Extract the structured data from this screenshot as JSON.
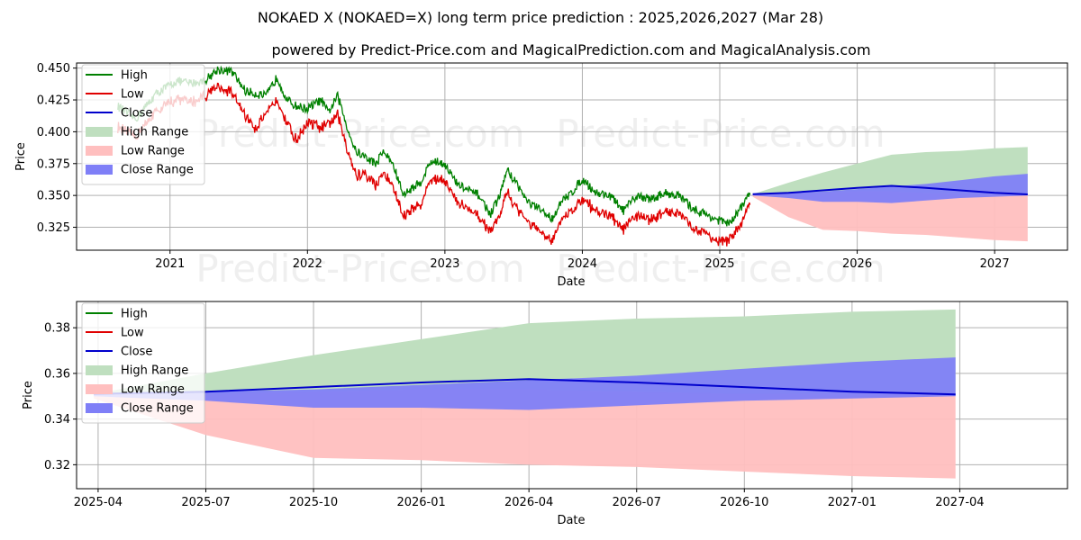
{
  "title": "NOKAED X (NOKAED=X) long term price prediction : 2025,2026,2027 (Mar 28)",
  "subtitle": "powered by Predict-Price.com and MagicalPrediction.com and MagicalAnalysis.com",
  "watermark_text": "Predict-Price.com",
  "colors": {
    "high": "#008000",
    "low": "#e00000",
    "close": "#0000cc",
    "high_range": "#bfdfbf",
    "low_range": "#ffbfbf",
    "close_range": "#7f7ff7"
  },
  "chart_data": [
    {
      "type": "line",
      "panel": "history",
      "xlabel": "Date",
      "ylabel": "Price",
      "xlim": [
        2020.32,
        2027.53
      ],
      "ylim": [
        0.307,
        0.454
      ],
      "grid": true,
      "legend_position": "top-left",
      "x_ticks": [
        {
          "label": "2021",
          "value": 2021.0
        },
        {
          "label": "2022",
          "value": 2022.0
        },
        {
          "label": "2023",
          "value": 2023.0
        },
        {
          "label": "2024",
          "value": 2024.0
        },
        {
          "label": "2025",
          "value": 2025.0
        },
        {
          "label": "2026",
          "value": 2026.0
        },
        {
          "label": "2027",
          "value": 2027.0
        }
      ],
      "y_ticks": [
        {
          "label": "0.325",
          "value": 0.325
        },
        {
          "label": "0.350",
          "value": 0.35
        },
        {
          "label": "0.375",
          "value": 0.375
        },
        {
          "label": "0.400",
          "value": 0.4
        },
        {
          "label": "0.425",
          "value": 0.425
        },
        {
          "label": "0.450",
          "value": 0.45
        }
      ],
      "legend": [
        "High",
        "Low",
        "Close",
        "High Range",
        "Low Range",
        "Close Range"
      ],
      "history_x": [
        2020.62,
        2020.75,
        2020.9,
        2021.05,
        2021.15,
        2021.25,
        2021.35,
        2021.45,
        2021.55,
        2021.62,
        2021.7,
        2021.78,
        2021.85,
        2021.92,
        2022.0,
        2022.1,
        2022.15,
        2022.22,
        2022.3,
        2022.35,
        2022.42,
        2022.5,
        2022.55,
        2022.62,
        2022.7,
        2022.75,
        2022.82,
        2022.9,
        2023.0,
        2023.08,
        2023.15,
        2023.25,
        2023.33,
        2023.4,
        2023.45,
        2023.52,
        2023.6,
        2023.7,
        2023.78,
        2023.85,
        2023.92,
        2024.0,
        2024.1,
        2024.2,
        2024.3,
        2024.4,
        2024.5,
        2024.6,
        2024.7,
        2024.8,
        2024.9,
        2025.0,
        2025.08,
        2025.15,
        2025.22
      ],
      "history_high": [
        0.42,
        0.41,
        0.43,
        0.44,
        0.438,
        0.44,
        0.449,
        0.447,
        0.432,
        0.43,
        0.428,
        0.443,
        0.425,
        0.42,
        0.418,
        0.425,
        0.415,
        0.428,
        0.4,
        0.385,
        0.38,
        0.375,
        0.385,
        0.375,
        0.35,
        0.355,
        0.36,
        0.377,
        0.375,
        0.36,
        0.355,
        0.35,
        0.335,
        0.35,
        0.37,
        0.36,
        0.345,
        0.338,
        0.332,
        0.345,
        0.352,
        0.363,
        0.352,
        0.35,
        0.338,
        0.35,
        0.347,
        0.352,
        0.35,
        0.34,
        0.335,
        0.33,
        0.328,
        0.34,
        0.352
      ],
      "history_low": [
        0.405,
        0.398,
        0.418,
        0.428,
        0.425,
        0.43,
        0.438,
        0.432,
        0.415,
        0.405,
        0.415,
        0.428,
        0.41,
        0.395,
        0.41,
        0.405,
        0.408,
        0.415,
        0.385,
        0.368,
        0.368,
        0.36,
        0.37,
        0.36,
        0.335,
        0.34,
        0.345,
        0.365,
        0.365,
        0.347,
        0.342,
        0.335,
        0.325,
        0.335,
        0.355,
        0.343,
        0.332,
        0.322,
        0.318,
        0.332,
        0.34,
        0.35,
        0.34,
        0.336,
        0.325,
        0.337,
        0.333,
        0.34,
        0.338,
        0.327,
        0.322,
        0.315,
        0.318,
        0.328,
        0.348
      ],
      "forecast_x": [
        2025.24,
        2025.5,
        2025.75,
        2026.0,
        2026.25,
        2026.5,
        2026.75,
        2027.0,
        2027.24
      ],
      "close": [
        0.351,
        0.352,
        0.354,
        0.356,
        0.3575,
        0.356,
        0.354,
        0.352,
        0.3508
      ],
      "high_range": [
        [
          0.351,
          0.351
        ],
        [
          0.348,
          0.36
        ],
        [
          0.345,
          0.368
        ],
        [
          0.345,
          0.375
        ],
        [
          0.344,
          0.382
        ],
        [
          0.346,
          0.384
        ],
        [
          0.348,
          0.385
        ],
        [
          0.349,
          0.387
        ],
        [
          0.35,
          0.388
        ]
      ],
      "low_range": [
        [
          0.349,
          0.351
        ],
        [
          0.333,
          0.351
        ],
        [
          0.323,
          0.352
        ],
        [
          0.322,
          0.353
        ],
        [
          0.32,
          0.353
        ],
        [
          0.319,
          0.352
        ],
        [
          0.317,
          0.351
        ],
        [
          0.315,
          0.351
        ],
        [
          0.314,
          0.351
        ]
      ],
      "close_range": [
        [
          0.35,
          0.351
        ],
        [
          0.348,
          0.352
        ],
        [
          0.345,
          0.353
        ],
        [
          0.345,
          0.355
        ],
        [
          0.344,
          0.357
        ],
        [
          0.346,
          0.359
        ],
        [
          0.348,
          0.362
        ],
        [
          0.349,
          0.365
        ],
        [
          0.35,
          0.367
        ]
      ]
    },
    {
      "type": "line",
      "panel": "forecast",
      "xlabel": "Date",
      "ylabel": "Price",
      "xlim": [
        2025.2,
        2027.5
      ],
      "ylim": [
        0.3095,
        0.3915
      ],
      "grid": true,
      "legend_position": "top-left",
      "x_ticks": [
        {
          "label": "2025-04",
          "value": 2025.25
        },
        {
          "label": "2025-07",
          "value": 2025.5
        },
        {
          "label": "2025-10",
          "value": 2025.75
        },
        {
          "label": "2026-01",
          "value": 2026.0
        },
        {
          "label": "2026-04",
          "value": 2026.25
        },
        {
          "label": "2026-07",
          "value": 2026.5
        },
        {
          "label": "2026-10",
          "value": 2026.75
        },
        {
          "label": "2027-01",
          "value": 2027.0
        },
        {
          "label": "2027-04",
          "value": 2027.25
        }
      ],
      "y_ticks": [
        {
          "label": "0.32",
          "value": 0.32
        },
        {
          "label": "0.34",
          "value": 0.34
        },
        {
          "label": "0.36",
          "value": 0.36
        },
        {
          "label": "0.38",
          "value": 0.38
        }
      ],
      "legend": [
        "High",
        "Low",
        "Close",
        "High Range",
        "Low Range",
        "Close Range"
      ],
      "forecast_x": [
        2025.24,
        2025.5,
        2025.75,
        2026.0,
        2026.25,
        2026.5,
        2026.75,
        2027.0,
        2027.24
      ],
      "close": [
        0.351,
        0.352,
        0.354,
        0.356,
        0.3575,
        0.356,
        0.354,
        0.352,
        0.3508
      ],
      "high_range": [
        [
          0.351,
          0.351
        ],
        [
          0.348,
          0.36
        ],
        [
          0.345,
          0.368
        ],
        [
          0.345,
          0.375
        ],
        [
          0.344,
          0.382
        ],
        [
          0.346,
          0.384
        ],
        [
          0.348,
          0.385
        ],
        [
          0.349,
          0.387
        ],
        [
          0.35,
          0.388
        ]
      ],
      "low_range": [
        [
          0.349,
          0.351
        ],
        [
          0.333,
          0.351
        ],
        [
          0.323,
          0.352
        ],
        [
          0.322,
          0.353
        ],
        [
          0.32,
          0.353
        ],
        [
          0.319,
          0.352
        ],
        [
          0.317,
          0.351
        ],
        [
          0.315,
          0.351
        ],
        [
          0.314,
          0.351
        ]
      ],
      "close_range": [
        [
          0.35,
          0.351
        ],
        [
          0.348,
          0.352
        ],
        [
          0.345,
          0.353
        ],
        [
          0.345,
          0.355
        ],
        [
          0.344,
          0.357
        ],
        [
          0.346,
          0.359
        ],
        [
          0.348,
          0.362
        ],
        [
          0.349,
          0.365
        ],
        [
          0.35,
          0.367
        ]
      ]
    }
  ]
}
